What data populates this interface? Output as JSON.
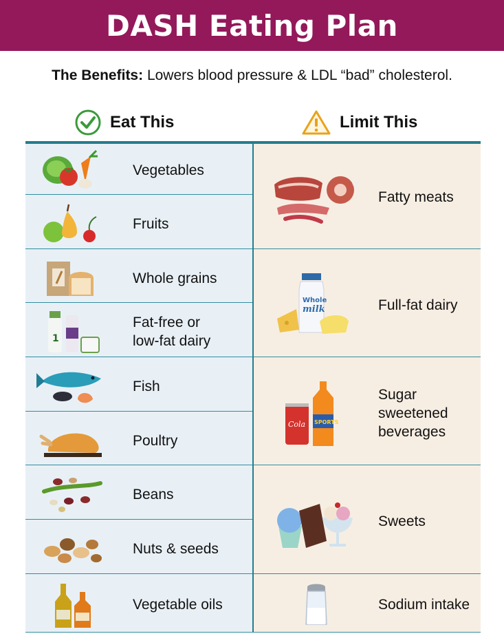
{
  "header": {
    "title": "DASH Eating Plan"
  },
  "benefits": {
    "lead": "The Benefits:",
    "text": " Lowers blood pressure & LDL “bad” cholesterol."
  },
  "eat": {
    "heading": "Eat This",
    "icon": "check-circle-icon",
    "items": [
      {
        "label": "Vegetables",
        "icon": "vegetables-icon"
      },
      {
        "label": "Fruits",
        "icon": "fruits-icon"
      },
      {
        "label": "Whole grains",
        "icon": "grains-icon"
      },
      {
        "label": "Fat-free or\nlow-fat dairy",
        "icon": "dairy-icon"
      },
      {
        "label": "Fish",
        "icon": "fish-icon"
      },
      {
        "label": "Poultry",
        "icon": "poultry-icon"
      },
      {
        "label": "Beans",
        "icon": "beans-icon"
      },
      {
        "label": "Nuts & seeds",
        "icon": "nuts-icon"
      },
      {
        "label": "Vegetable oils",
        "icon": "oil-bottles-icon"
      }
    ]
  },
  "limit": {
    "heading": "Limit This",
    "icon": "warning-triangle-icon",
    "items": [
      {
        "label": "Fatty meats",
        "icon": "meats-icon"
      },
      {
        "label": "Full-fat dairy",
        "icon": "whole-milk-icon",
        "milk_word1": "Whole",
        "milk_word2": "milk"
      },
      {
        "label": "Sugar\nsweetened\nbeverages",
        "icon": "soda-icon",
        "can_text": "Cola",
        "bottle_text": "SPORTS"
      },
      {
        "label": "Sweets",
        "icon": "sweets-icon"
      },
      {
        "label": "Sodium intake",
        "icon": "salt-shaker-icon"
      }
    ]
  },
  "colors": {
    "banner": "#93195a",
    "rule": "#247d8c",
    "eat_bg": "#e8f0f6",
    "limit_bg": "#f7eee3",
    "check": "#3a9a3a",
    "warning": "#e9a21a"
  }
}
